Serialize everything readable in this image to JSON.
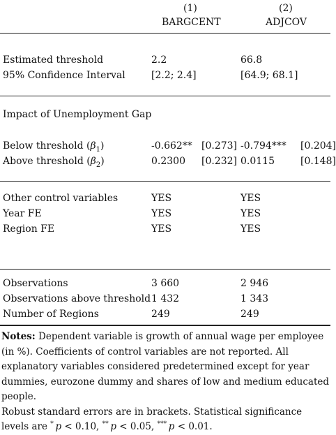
{
  "header": {
    "col1_num": "(1)",
    "col1_name": "BARGCENT",
    "col2_num": "(2)",
    "col2_name": "ADJCOV"
  },
  "rows": {
    "est_threshold": {
      "label": "Estimated threshold",
      "c1": "2.2",
      "c2": "66.8"
    },
    "ci": {
      "label": "95% Confidence Interval",
      "c1": "[2.2; 2.4]",
      "c2": "[64.9; 68.1]"
    },
    "section_title": "Impact of Unemployment Gap",
    "below": {
      "label_prefix": "Below threshold (",
      "label_var": "β",
      "label_sub": "1",
      "label_suffix": ")",
      "c1": "-0.662**",
      "c1_se": "[0.273]",
      "c2": "-0.794***",
      "c2_se": "[0.204]"
    },
    "above": {
      "label_prefix": "Above threshold (",
      "label_var": "β",
      "label_sub": "2",
      "label_suffix": ")",
      "c1": "0.2300",
      "c1_se": "[0.232]",
      "c2": "0.0115",
      "c2_se": "[0.148]"
    },
    "controls": {
      "label": "Other control variables",
      "c1": "YES",
      "c2": "YES"
    },
    "year_fe": {
      "label": "Year FE",
      "c1": "YES",
      "c2": "YES"
    },
    "region_fe": {
      "label": "Region FE",
      "c1": "YES",
      "c2": "YES"
    },
    "obs": {
      "label": "Observations",
      "c1": "3 660",
      "c2": "2 946"
    },
    "obs_above": {
      "label": "Observations above threshold",
      "c1": "1 432",
      "c2": "1 343"
    },
    "regions": {
      "label": "Number of Regions",
      "c1": "249",
      "c2": "249"
    }
  },
  "notes": {
    "heading": "Notes:",
    "text1": " Dependent variable is growth of annual wage per employee (in %). Coefficients of control variables are not reported. All explanatory variables considered predetermined except for year dummies, eurozone dummy and shares of low and medium educated people.",
    "text2": "Robust standard errors are in brackets. Statistical significance levels are ",
    "s1": "*",
    "p": "p",
    "v1": " < 0.10, ",
    "s2": "**",
    "v2": " < 0.05, ",
    "s3": "***",
    "v3": " < 0.01."
  }
}
